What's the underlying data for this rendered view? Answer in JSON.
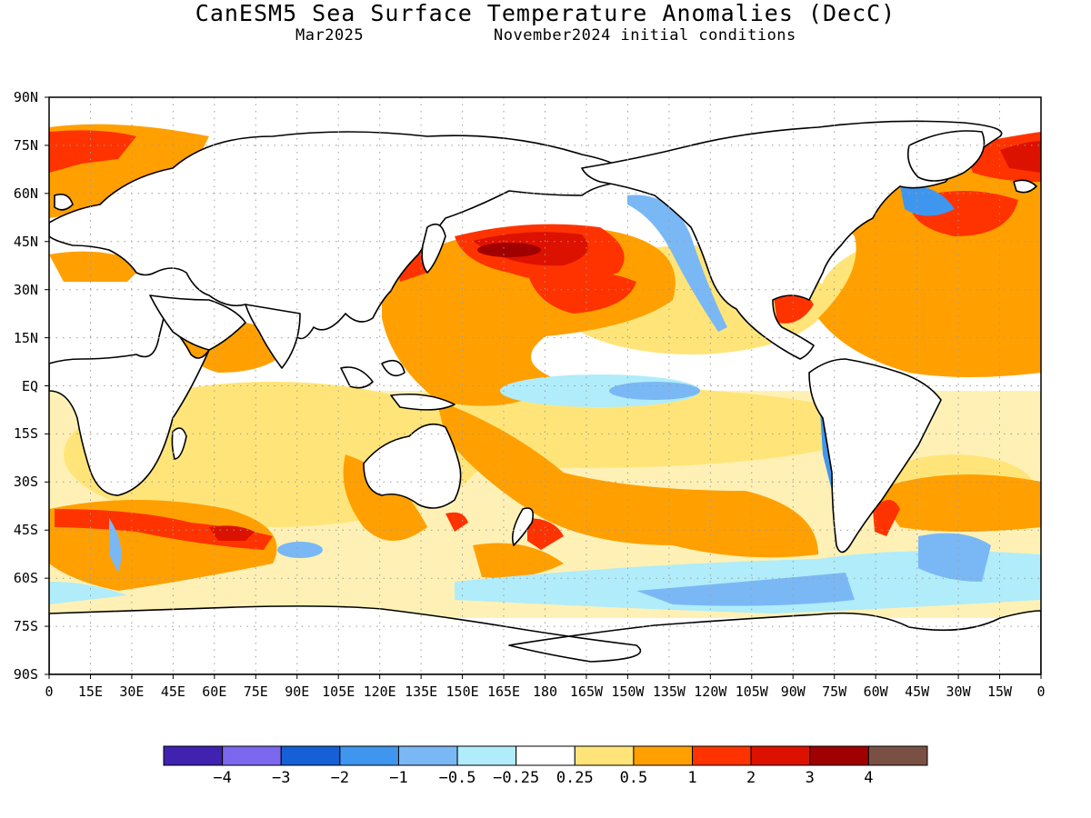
{
  "title": "CanESM5 Sea Surface Temperature Anomalies (DecC)",
  "subtitle_left": "Mar2025",
  "subtitle_right": "November2024 initial conditions",
  "y_ticks": [
    "90N",
    "75N",
    "60N",
    "45N",
    "30N",
    "15N",
    "EQ",
    "15S",
    "30S",
    "45S",
    "60S",
    "75S",
    "90S"
  ],
  "x_ticks": [
    "0",
    "15E",
    "30E",
    "45E",
    "60E",
    "75E",
    "90E",
    "105E",
    "120E",
    "135E",
    "150E",
    "165E",
    "180",
    "165W",
    "150W",
    "135W",
    "120W",
    "105W",
    "90W",
    "75W",
    "60W",
    "45W",
    "30W",
    "15W",
    "0"
  ],
  "colorbar": {
    "labels": [
      "-4",
      "-3",
      "-2",
      "-1",
      "-0.5",
      "-0.25",
      "0.25",
      "0.5",
      "1",
      "2",
      "3",
      "4"
    ],
    "colors": [
      "#3f22b0",
      "#7b68ee",
      "#1560d6",
      "#3f96ee",
      "#7ab8f5",
      "#b0ecfa",
      "#ffffff",
      "#ffe579",
      "#ffa000",
      "#ff3300",
      "#dd1100",
      "#a00000",
      "#7a5045"
    ]
  },
  "chart_data": {
    "type": "map",
    "projection": "equirectangular",
    "lon_range": [
      0,
      360
    ],
    "lat_range": [
      -90,
      90
    ],
    "variable": "Sea Surface Temperature Anomalies (DecC)",
    "grid": "dotted"
  }
}
